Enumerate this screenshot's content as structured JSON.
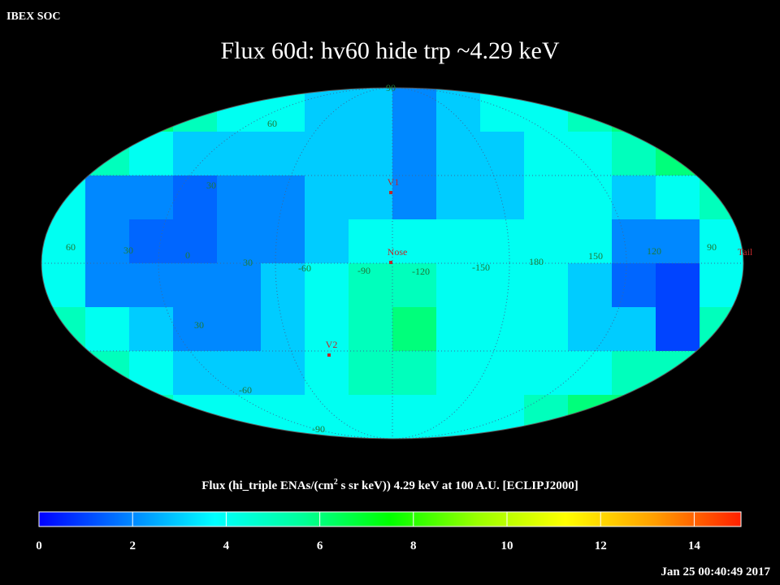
{
  "header": {
    "left": "IBEX SOC",
    "title": "Flux   60d: hv60 hide trp ~4.29 keV",
    "timestamp": "Jan 25 00:40:49 2017"
  },
  "chart_data": {
    "type": "sky_map",
    "colorbar_label": {
      "before": "Flux (hi_triple ENAs/(cm",
      "superscript": "2",
      "after": " s sr keV))  4.29 keV at 100 A.U. [ECLIPJ2000]"
    },
    "values": [
      [
        6,
        6,
        6,
        5,
        4,
        4,
        3,
        3,
        2,
        3,
        4,
        4,
        5,
        6,
        6,
        6
      ],
      [
        6,
        5,
        4,
        3,
        3,
        3,
        3,
        3,
        2,
        3,
        3,
        4,
        4,
        5,
        6,
        7
      ],
      [
        4,
        2,
        2,
        1.5,
        2,
        2,
        3,
        3,
        2,
        3,
        3,
        4,
        4,
        3,
        4,
        5
      ],
      [
        4,
        2,
        1.5,
        1.5,
        2,
        2,
        3,
        4,
        4,
        4,
        4,
        4,
        4,
        2,
        2,
        4
      ],
      [
        4,
        2,
        2,
        2,
        2,
        3,
        4,
        5,
        5,
        4,
        4,
        4,
        3,
        1.5,
        1,
        4
      ],
      [
        5,
        4,
        3,
        2,
        2,
        3,
        4,
        5,
        6,
        4,
        4,
        4,
        3,
        3,
        1,
        5
      ],
      [
        6,
        5,
        4,
        3,
        3,
        3,
        4,
        5,
        5,
        4,
        4,
        4,
        4,
        5,
        5,
        6
      ],
      [
        6,
        6,
        5,
        4,
        4,
        4,
        4,
        4,
        4,
        4,
        4,
        5,
        6,
        6,
        6,
        6
      ]
    ],
    "clim": [
      0,
      15
    ],
    "cticks": [
      0,
      2,
      4,
      6,
      8,
      10,
      12,
      14
    ],
    "colormap": [
      "#0000ff",
      "#0080ff",
      "#00ffff",
      "#00ff9a",
      "#00ff00",
      "#9aff00",
      "#ffff00",
      "#ffa000",
      "#ff2000"
    ],
    "longitude_labels": [
      "60",
      "30",
      "0",
      "30",
      "-60",
      "-90",
      "-120",
      "-150",
      "180",
      "150",
      "120",
      "90"
    ],
    "latitude_labels": [
      "90",
      "60",
      "30",
      "30",
      "-60",
      "-90"
    ],
    "markers": [
      "V1",
      "Nose",
      "V2",
      "Tail"
    ]
  }
}
